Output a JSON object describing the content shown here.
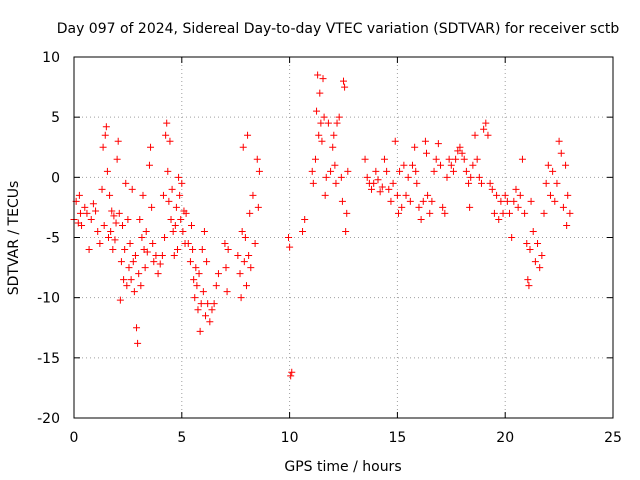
{
  "chart_data": {
    "type": "scatter",
    "title": "Day 097 of 2024, Sidereal Day-to-day VTEC variation (SDTVAR) for receiver sctb",
    "xlabel": "GPS time / hours",
    "ylabel": "SDTVAR / TECUs",
    "xlim": [
      0,
      25
    ],
    "ylim": [
      -20,
      10
    ],
    "xticks": [
      0,
      5,
      10,
      15,
      20,
      25
    ],
    "yticks": [
      -20,
      -15,
      -10,
      -5,
      0,
      5,
      10
    ],
    "grid": true,
    "marker": "+",
    "color": "#ff0000",
    "series": [
      {
        "name": "SDTVAR",
        "points": [
          [
            0.0,
            -3.5
          ],
          [
            0.1,
            -2.0
          ],
          [
            0.2,
            -3.8
          ],
          [
            0.25,
            -1.5
          ],
          [
            0.3,
            -3.0
          ],
          [
            0.35,
            -4.0
          ],
          [
            0.5,
            -2.5
          ],
          [
            0.6,
            -3.0
          ],
          [
            0.7,
            -6.0
          ],
          [
            0.8,
            -3.5
          ],
          [
            0.9,
            -2.2
          ],
          [
            1.0,
            -2.8
          ],
          [
            1.1,
            -4.5
          ],
          [
            1.2,
            -5.5
          ],
          [
            1.3,
            -1.0
          ],
          [
            1.35,
            2.5
          ],
          [
            1.4,
            -4.0
          ],
          [
            1.45,
            3.5
          ],
          [
            1.5,
            4.2
          ],
          [
            1.55,
            0.5
          ],
          [
            1.6,
            -5.0
          ],
          [
            1.65,
            -1.5
          ],
          [
            1.7,
            -4.5
          ],
          [
            1.75,
            -2.8
          ],
          [
            1.8,
            -6.0
          ],
          [
            1.85,
            -3.2
          ],
          [
            1.9,
            -5.2
          ],
          [
            1.95,
            -3.8
          ],
          [
            2.0,
            1.5
          ],
          [
            2.05,
            3.0
          ],
          [
            2.1,
            -3.0
          ],
          [
            2.15,
            -10.2
          ],
          [
            2.2,
            -7.0
          ],
          [
            2.25,
            -4.0
          ],
          [
            2.3,
            -8.5
          ],
          [
            2.35,
            -6.0
          ],
          [
            2.4,
            -0.5
          ],
          [
            2.45,
            -9.0
          ],
          [
            2.5,
            -3.5
          ],
          [
            2.55,
            -7.5
          ],
          [
            2.6,
            -5.5
          ],
          [
            2.65,
            -8.5
          ],
          [
            2.7,
            -1.0
          ],
          [
            2.75,
            -7.0
          ],
          [
            2.8,
            -9.5
          ],
          [
            2.85,
            -6.5
          ],
          [
            2.9,
            -12.5
          ],
          [
            2.95,
            -13.8
          ],
          [
            3.0,
            -8.0
          ],
          [
            3.05,
            -3.5
          ],
          [
            3.1,
            -9.0
          ],
          [
            3.15,
            -5.0
          ],
          [
            3.2,
            -1.5
          ],
          [
            3.25,
            -6.0
          ],
          [
            3.3,
            -7.5
          ],
          [
            3.35,
            -4.5
          ],
          [
            3.4,
            -6.2
          ],
          [
            3.5,
            1.0
          ],
          [
            3.55,
            2.5
          ],
          [
            3.6,
            -2.5
          ],
          [
            3.65,
            -5.5
          ],
          [
            3.7,
            -7.0
          ],
          [
            3.8,
            -6.5
          ],
          [
            3.9,
            -8.0
          ],
          [
            4.0,
            -7.2
          ],
          [
            4.1,
            -6.5
          ],
          [
            4.15,
            -1.5
          ],
          [
            4.2,
            -5.0
          ],
          [
            4.25,
            3.5
          ],
          [
            4.3,
            4.5
          ],
          [
            4.35,
            0.5
          ],
          [
            4.4,
            -2.0
          ],
          [
            4.45,
            3.0
          ],
          [
            4.5,
            -3.5
          ],
          [
            4.55,
            -1.0
          ],
          [
            4.6,
            -4.5
          ],
          [
            4.65,
            -6.5
          ],
          [
            4.7,
            -4.0
          ],
          [
            4.75,
            -2.5
          ],
          [
            4.8,
            -6.0
          ],
          [
            4.85,
            0.0
          ],
          [
            4.9,
            -1.5
          ],
          [
            4.95,
            -3.5
          ],
          [
            5.0,
            -0.5
          ],
          [
            5.05,
            -4.5
          ],
          [
            5.1,
            -2.8
          ],
          [
            5.15,
            -5.5
          ],
          [
            5.2,
            -3.0
          ],
          [
            5.3,
            -5.5
          ],
          [
            5.4,
            -7.0
          ],
          [
            5.45,
            -4.0
          ],
          [
            5.5,
            -6.0
          ],
          [
            5.55,
            -8.5
          ],
          [
            5.6,
            -10.0
          ],
          [
            5.65,
            -7.5
          ],
          [
            5.7,
            -9.0
          ],
          [
            5.75,
            -11.0
          ],
          [
            5.8,
            -8.0
          ],
          [
            5.85,
            -12.8
          ],
          [
            5.9,
            -10.5
          ],
          [
            5.95,
            -6.0
          ],
          [
            6.0,
            -9.5
          ],
          [
            6.05,
            -4.5
          ],
          [
            6.1,
            -11.5
          ],
          [
            6.15,
            -7.0
          ],
          [
            6.2,
            -10.5
          ],
          [
            6.3,
            -12.0
          ],
          [
            6.4,
            -11.0
          ],
          [
            6.5,
            -10.5
          ],
          [
            6.6,
            -9.0
          ],
          [
            6.7,
            -8.0
          ],
          [
            7.0,
            -5.5
          ],
          [
            7.05,
            -7.5
          ],
          [
            7.1,
            -9.5
          ],
          [
            7.15,
            -6.0
          ],
          [
            7.6,
            -6.5
          ],
          [
            7.7,
            -8.0
          ],
          [
            7.75,
            -10.0
          ],
          [
            7.8,
            -4.5
          ],
          [
            7.85,
            2.5
          ],
          [
            7.9,
            -7.0
          ],
          [
            7.95,
            -5.0
          ],
          [
            8.0,
            -9.0
          ],
          [
            8.05,
            3.5
          ],
          [
            8.1,
            -6.5
          ],
          [
            8.15,
            -3.0
          ],
          [
            8.2,
            -7.5
          ],
          [
            8.3,
            -1.5
          ],
          [
            8.4,
            -5.5
          ],
          [
            8.5,
            1.5
          ],
          [
            8.55,
            -2.5
          ],
          [
            8.6,
            0.5
          ],
          [
            9.95,
            -5.0
          ],
          [
            10.0,
            -5.8
          ],
          [
            10.05,
            -16.5
          ],
          [
            10.1,
            -16.2
          ],
          [
            10.6,
            -4.5
          ],
          [
            10.7,
            -3.5
          ],
          [
            11.05,
            0.5
          ],
          [
            11.1,
            -0.5
          ],
          [
            11.2,
            1.5
          ],
          [
            11.25,
            5.5
          ],
          [
            11.3,
            8.5
          ],
          [
            11.35,
            3.5
          ],
          [
            11.4,
            7.0
          ],
          [
            11.45,
            4.5
          ],
          [
            11.5,
            3.0
          ],
          [
            11.55,
            8.2
          ],
          [
            11.6,
            5.0
          ],
          [
            11.65,
            -1.5
          ],
          [
            11.7,
            0.0
          ],
          [
            11.8,
            4.5
          ],
          [
            11.9,
            0.5
          ],
          [
            12.0,
            2.5
          ],
          [
            12.05,
            3.5
          ],
          [
            12.1,
            1.0
          ],
          [
            12.15,
            -0.5
          ],
          [
            12.2,
            4.5
          ],
          [
            12.3,
            5.0
          ],
          [
            12.4,
            0.0
          ],
          [
            12.45,
            -2.0
          ],
          [
            12.5,
            8.0
          ],
          [
            12.55,
            7.5
          ],
          [
            12.6,
            -4.5
          ],
          [
            12.65,
            -3.0
          ],
          [
            12.7,
            0.5
          ],
          [
            13.5,
            1.5
          ],
          [
            13.6,
            0.0
          ],
          [
            13.7,
            -0.5
          ],
          [
            13.8,
            -1.0
          ],
          [
            13.9,
            -0.5
          ],
          [
            14.0,
            0.5
          ],
          [
            14.1,
            -0.2
          ],
          [
            14.2,
            -1.2
          ],
          [
            14.3,
            -0.8
          ],
          [
            14.4,
            1.5
          ],
          [
            14.5,
            0.5
          ],
          [
            14.6,
            -1.0
          ],
          [
            14.7,
            -2.0
          ],
          [
            14.8,
            -0.5
          ],
          [
            14.9,
            3.0
          ],
          [
            15.0,
            -1.5
          ],
          [
            15.05,
            -3.0
          ],
          [
            15.1,
            0.5
          ],
          [
            15.2,
            -2.5
          ],
          [
            15.3,
            1.0
          ],
          [
            15.4,
            -1.5
          ],
          [
            15.5,
            0.0
          ],
          [
            15.6,
            -2.0
          ],
          [
            15.7,
            1.0
          ],
          [
            15.8,
            2.5
          ],
          [
            15.85,
            0.5
          ],
          [
            15.9,
            -0.5
          ],
          [
            16.0,
            -2.5
          ],
          [
            16.1,
            -3.5
          ],
          [
            16.2,
            -2.0
          ],
          [
            16.3,
            3.0
          ],
          [
            16.35,
            2.0
          ],
          [
            16.4,
            -1.5
          ],
          [
            16.5,
            -3.0
          ],
          [
            16.6,
            -2.0
          ],
          [
            16.7,
            0.5
          ],
          [
            16.8,
            1.5
          ],
          [
            16.9,
            2.8
          ],
          [
            17.0,
            1.0
          ],
          [
            17.1,
            -2.5
          ],
          [
            17.2,
            -3.0
          ],
          [
            17.3,
            0.0
          ],
          [
            17.4,
            1.5
          ],
          [
            17.5,
            1.0
          ],
          [
            17.6,
            0.5
          ],
          [
            17.7,
            1.5
          ],
          [
            17.8,
            2.2
          ],
          [
            17.9,
            2.5
          ],
          [
            18.0,
            2.0
          ],
          [
            18.1,
            1.5
          ],
          [
            18.2,
            0.5
          ],
          [
            18.3,
            -0.5
          ],
          [
            18.35,
            -2.5
          ],
          [
            18.4,
            0.0
          ],
          [
            18.5,
            1.0
          ],
          [
            18.6,
            3.5
          ],
          [
            18.7,
            1.5
          ],
          [
            18.8,
            0.0
          ],
          [
            18.9,
            -0.5
          ],
          [
            19.0,
            4.0
          ],
          [
            19.1,
            4.5
          ],
          [
            19.2,
            3.5
          ],
          [
            19.3,
            -0.5
          ],
          [
            19.4,
            -1.0
          ],
          [
            19.5,
            -3.0
          ],
          [
            19.6,
            -1.5
          ],
          [
            19.7,
            -3.5
          ],
          [
            19.8,
            -2.0
          ],
          [
            19.9,
            -3.0
          ],
          [
            20.0,
            -1.5
          ],
          [
            20.1,
            -2.0
          ],
          [
            20.2,
            -3.0
          ],
          [
            20.3,
            -5.0
          ],
          [
            20.4,
            -2.0
          ],
          [
            20.5,
            -1.0
          ],
          [
            20.6,
            -2.5
          ],
          [
            20.7,
            -1.5
          ],
          [
            20.8,
            1.5
          ],
          [
            20.9,
            -3.0
          ],
          [
            21.0,
            -5.5
          ],
          [
            21.05,
            -8.5
          ],
          [
            21.1,
            -9.0
          ],
          [
            21.15,
            -6.0
          ],
          [
            21.2,
            -2.0
          ],
          [
            21.3,
            -4.5
          ],
          [
            21.4,
            -7.0
          ],
          [
            21.5,
            -5.5
          ],
          [
            21.6,
            -7.5
          ],
          [
            21.7,
            -6.5
          ],
          [
            21.8,
            -3.0
          ],
          [
            21.9,
            -0.5
          ],
          [
            22.0,
            1.0
          ],
          [
            22.1,
            -1.5
          ],
          [
            22.2,
            0.5
          ],
          [
            22.3,
            -2.0
          ],
          [
            22.4,
            -0.5
          ],
          [
            22.5,
            3.0
          ],
          [
            22.6,
            2.0
          ],
          [
            22.7,
            -2.5
          ],
          [
            22.8,
            1.0
          ],
          [
            22.85,
            -4.0
          ],
          [
            22.9,
            -1.5
          ],
          [
            23.0,
            -3.0
          ]
        ]
      }
    ]
  }
}
